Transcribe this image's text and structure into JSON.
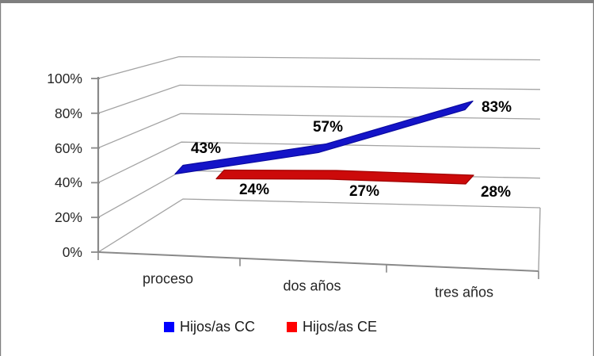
{
  "chart_data": {
    "type": "line",
    "style": "3d-perspective-ribbon",
    "categories": [
      "proceso",
      "dos años",
      "tres años"
    ],
    "series": [
      {
        "name": "Hijos/as CC",
        "color": "#1414C8",
        "edge_color": "#0A0AA0",
        "legend_color": "#0000FF",
        "values": [
          43,
          57,
          83
        ],
        "point_labels": [
          "43%",
          "57%",
          "83%"
        ]
      },
      {
        "name": "Hijos/as CE",
        "color": "#CC0A0A",
        "edge_color": "#A00000",
        "legend_color": "#FF0000",
        "values": [
          24,
          27,
          28
        ],
        "point_labels": [
          "24%",
          "27%",
          "28%"
        ]
      }
    ],
    "y_axis": {
      "min": 0,
      "max": 100,
      "tick_values": [
        0,
        20,
        40,
        60,
        80,
        100
      ],
      "tick_labels": [
        "0%",
        "20%",
        "40%",
        "60%",
        "80%",
        "100%"
      ]
    },
    "grid": true,
    "legend_position": "bottom",
    "colors": {
      "gridline": "#A3A3A3",
      "axis": "#898989",
      "frame_border": "#7F7F7F",
      "background": "#FFFFFF"
    }
  }
}
